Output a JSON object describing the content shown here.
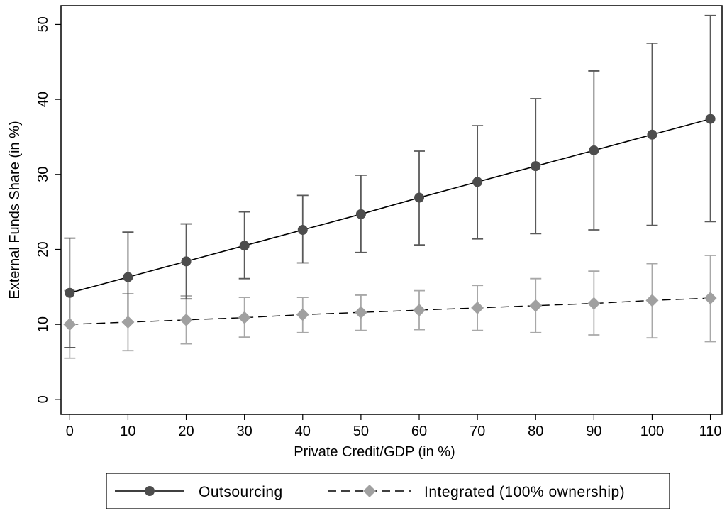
{
  "chart_data": {
    "type": "line",
    "xlabel": "Private Credit/GDP (in %)",
    "ylabel": "External Funds Share (in %)",
    "xlim": [
      -1.5,
      112
    ],
    "ylim": [
      -2,
      52.5
    ],
    "x_ticks": [
      0,
      10,
      20,
      30,
      40,
      50,
      60,
      70,
      80,
      90,
      100,
      110
    ],
    "y_ticks": [
      0,
      10,
      20,
      30,
      40,
      50
    ],
    "grid": false,
    "legend_position": "bottom",
    "series": [
      {
        "name": "Outsourcing",
        "line_style": "solid",
        "marker": "circle",
        "line_color": "#000000",
        "marker_color": "#4d4d4d",
        "errorbar_color": "#5a5a5a",
        "x": [
          0,
          10,
          20,
          30,
          40,
          50,
          60,
          70,
          80,
          90,
          100,
          110
        ],
        "y": [
          14.2,
          16.3,
          18.4,
          20.5,
          22.6,
          24.7,
          26.9,
          29.0,
          31.1,
          33.2,
          35.3,
          37.4
        ],
        "lower": [
          6.9,
          10.3,
          13.4,
          16.1,
          18.2,
          19.6,
          20.6,
          21.4,
          22.1,
          22.6,
          23.2,
          23.7
        ],
        "upper": [
          21.5,
          22.3,
          23.4,
          25.0,
          27.2,
          29.9,
          33.1,
          36.5,
          40.1,
          43.8,
          47.5,
          51.2
        ]
      },
      {
        "name": "Integrated (100% ownership)",
        "line_style": "dashed",
        "marker": "diamond",
        "line_color": "#000000",
        "marker_color": "#a0a0a0",
        "errorbar_color": "#a8a8a8",
        "x": [
          0,
          10,
          20,
          30,
          40,
          50,
          60,
          70,
          80,
          90,
          100,
          110
        ],
        "y": [
          10.0,
          10.3,
          10.6,
          10.9,
          11.3,
          11.6,
          11.9,
          12.2,
          12.5,
          12.8,
          13.2,
          13.5
        ],
        "lower": [
          5.5,
          6.5,
          7.4,
          8.3,
          8.9,
          9.2,
          9.3,
          9.2,
          8.9,
          8.6,
          8.2,
          7.7
        ],
        "upper": [
          14.5,
          14.1,
          13.8,
          13.6,
          13.6,
          13.9,
          14.5,
          15.2,
          16.1,
          17.1,
          18.1,
          19.2
        ]
      }
    ]
  }
}
